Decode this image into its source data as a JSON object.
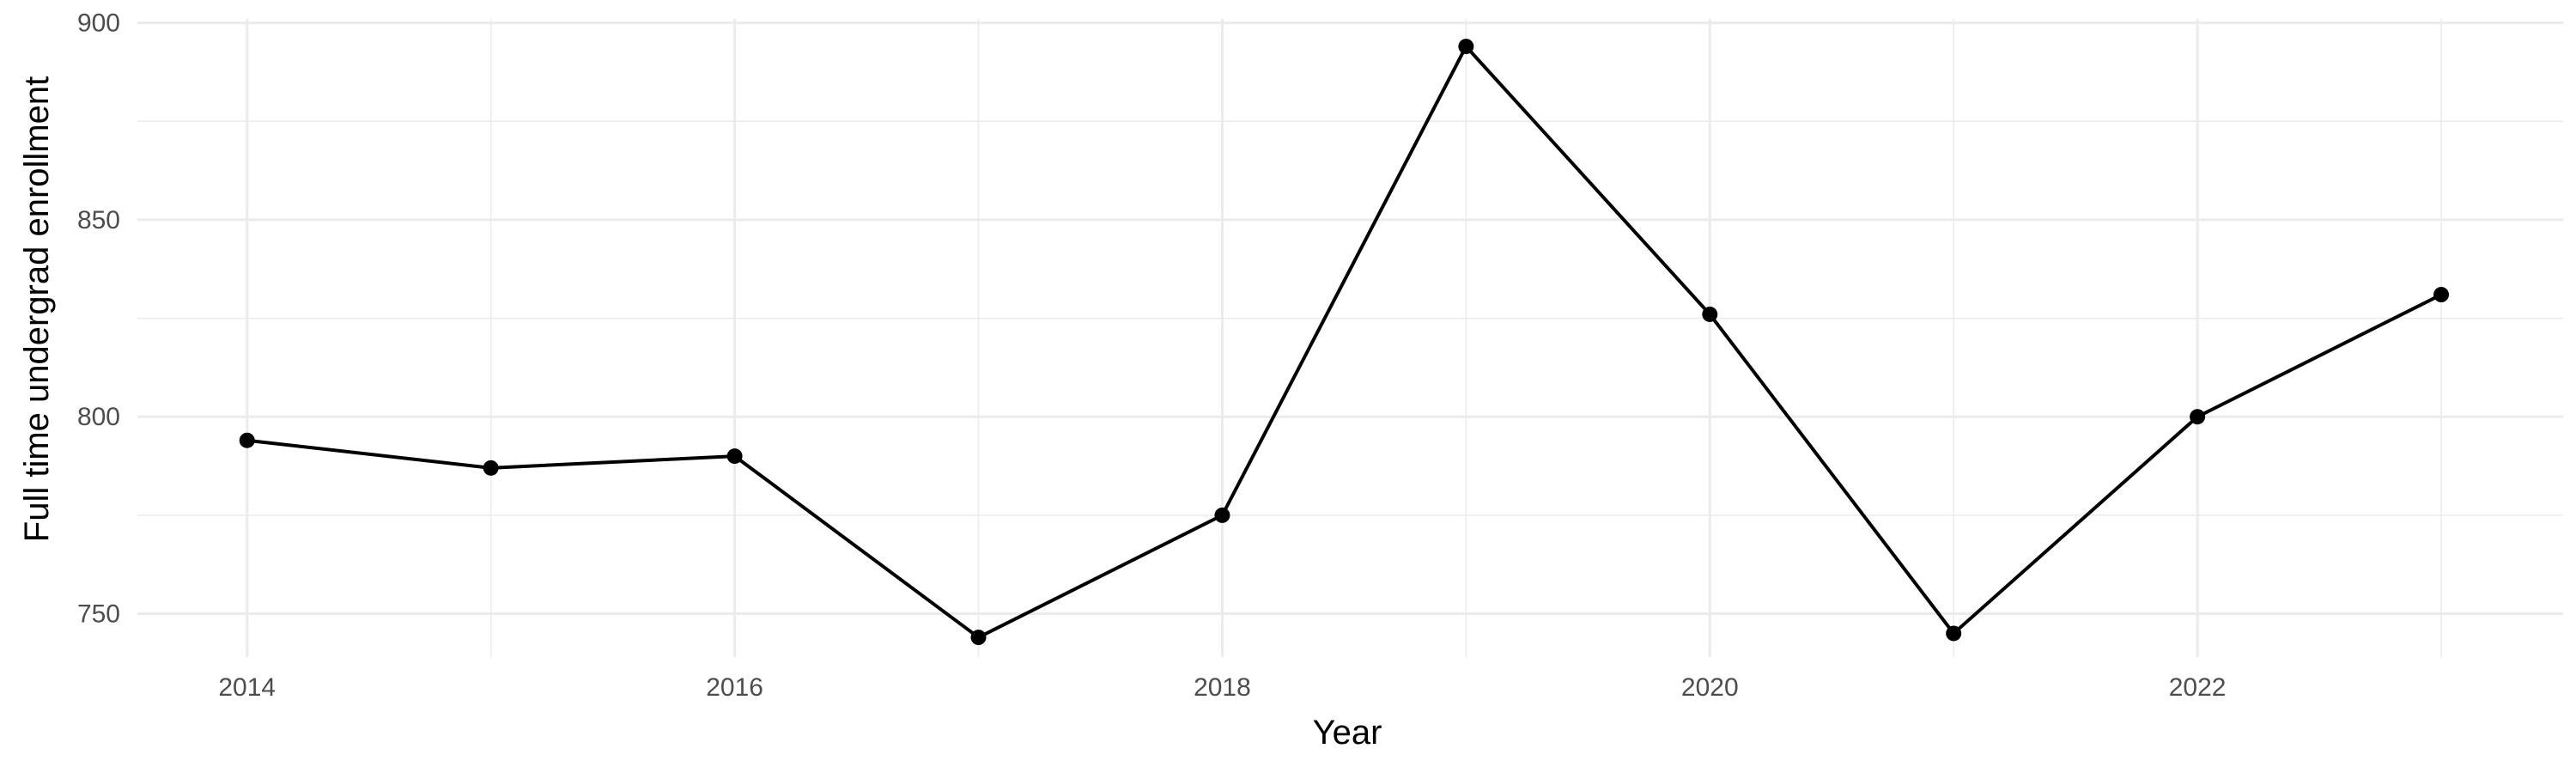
{
  "chart_data": {
    "type": "line",
    "title": "",
    "xlabel": "Year",
    "ylabel": "Full time undergrad enrollment",
    "x": [
      2014,
      2015,
      2016,
      2017,
      2018,
      2019,
      2020,
      2021,
      2022,
      2023
    ],
    "series": [
      {
        "values": [
          794,
          787,
          790,
          744,
          775,
          894,
          826,
          745,
          800,
          831
        ]
      }
    ],
    "xlim": [
      2013.55,
      2023.5
    ],
    "ylim": [
      739,
      901
    ],
    "x_ticks": [
      2014,
      2016,
      2018,
      2020,
      2022
    ],
    "x_tick_labels": [
      "2014",
      "2016",
      "2018",
      "2020",
      "2022"
    ],
    "y_ticks": [
      750,
      800,
      850,
      900
    ],
    "y_tick_labels": [
      "750",
      "800",
      "850",
      "900"
    ],
    "grid": true,
    "legend": "none",
    "colors": {
      "line": "#000000",
      "grid": "#ebebeb",
      "tick_text": "#4d4d4d"
    }
  }
}
